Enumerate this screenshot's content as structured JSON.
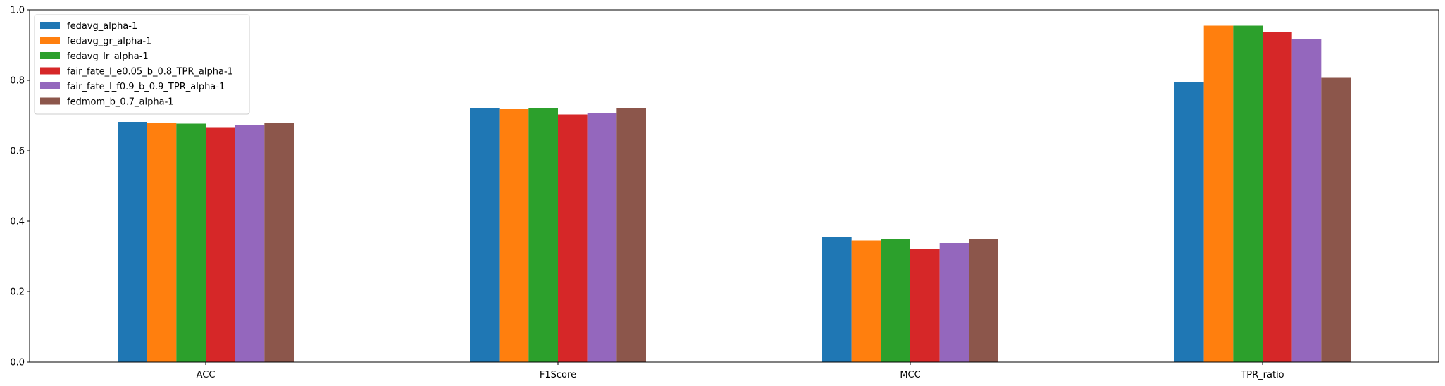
{
  "chart_data": {
    "type": "bar",
    "categories": [
      "ACC",
      "F1Score",
      "MCC",
      "TPR_ratio"
    ],
    "series": [
      {
        "name": "fedavg_alpha-1",
        "color": "#1f77b4",
        "values": [
          0.682,
          0.72,
          0.356,
          0.795
        ]
      },
      {
        "name": "fedavg_gr_alpha-1",
        "color": "#ff7f0e",
        "values": [
          0.678,
          0.718,
          0.345,
          0.955
        ]
      },
      {
        "name": "fedavg_lr_alpha-1",
        "color": "#2ca02c",
        "values": [
          0.677,
          0.72,
          0.35,
          0.955
        ]
      },
      {
        "name": "fair_fate_l_e0.05_b_0.8_TPR_alpha-1",
        "color": "#d62728",
        "values": [
          0.665,
          0.703,
          0.322,
          0.938
        ]
      },
      {
        "name": "fair_fate_l_f0.9_b_0.9_TPR_alpha-1",
        "color": "#9467bd",
        "values": [
          0.673,
          0.707,
          0.338,
          0.917
        ]
      },
      {
        "name": "fedmom_b_0.7_alpha-1",
        "color": "#8c564b",
        "values": [
          0.68,
          0.722,
          0.35,
          0.807
        ]
      }
    ],
    "ylim": [
      0,
      1.0
    ],
    "yticks": [
      "0.0",
      "0.2",
      "0.4",
      "0.6",
      "0.8",
      "1.0"
    ],
    "xlabel": "",
    "ylabel": "",
    "title": "",
    "grid": false,
    "legend_position": "top-left"
  }
}
